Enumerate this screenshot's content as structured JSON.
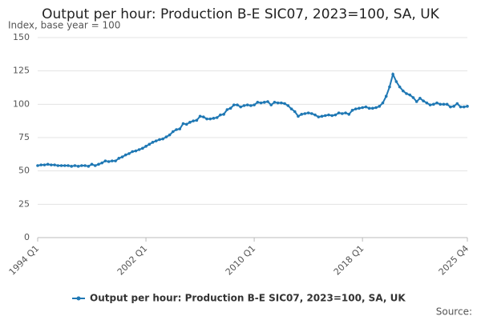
{
  "chart_data": {
    "type": "line",
    "title": "Output per hour: Production B-E SIC07, 2023=100, SA, UK",
    "y_label": "Index, base year = 100",
    "source": "Source:",
    "categories": [
      "1994 Q1",
      null,
      null,
      null,
      null,
      null,
      null,
      null,
      null,
      null,
      null,
      null,
      null,
      null,
      null,
      null,
      null,
      null,
      null,
      null,
      null,
      null,
      null,
      null,
      null,
      null,
      null,
      null,
      null,
      null,
      null,
      null,
      "2002 Q1",
      null,
      null,
      null,
      null,
      null,
      null,
      null,
      null,
      null,
      null,
      null,
      null,
      null,
      null,
      null,
      null,
      null,
      null,
      null,
      null,
      null,
      null,
      null,
      null,
      null,
      null,
      null,
      null,
      null,
      null,
      null,
      "2010 Q1",
      null,
      null,
      null,
      null,
      null,
      null,
      null,
      null,
      null,
      null,
      null,
      null,
      null,
      null,
      null,
      null,
      null,
      null,
      null,
      null,
      null,
      null,
      null,
      null,
      null,
      null,
      null,
      null,
      null,
      null,
      null,
      "2018 Q1",
      null,
      null,
      null,
      null,
      null,
      null,
      null,
      null,
      null,
      null,
      null,
      null,
      null,
      null,
      null,
      null,
      null,
      null,
      null,
      null,
      null,
      null,
      null,
      null,
      null,
      null,
      null,
      null,
      null,
      null,
      "2025 Q4"
    ],
    "series": [
      {
        "name": "Output per hour: Production B-E SIC07, 2023=100, SA, UK",
        "color": "#1f78b4",
        "values": [
          54,
          54.5,
          54.5,
          55,
          54.5,
          54.5,
          54,
          54,
          54,
          54,
          53.5,
          54,
          53.5,
          54,
          54,
          53.5,
          55,
          54,
          55,
          56,
          57.5,
          57,
          57.5,
          57.5,
          59.5,
          60.5,
          62,
          63,
          64.5,
          65,
          66,
          67,
          68.5,
          70,
          71.5,
          72.5,
          73.5,
          74,
          75.5,
          77,
          79.5,
          81,
          81.5,
          85.5,
          85,
          86.5,
          87.5,
          88,
          91,
          90.5,
          89,
          89,
          89.5,
          90,
          92,
          92.5,
          96,
          97,
          99.5,
          99.5,
          98,
          99,
          99.5,
          99,
          99.5,
          101.5,
          101,
          101.5,
          102,
          99.5,
          101.5,
          101,
          101,
          100.5,
          99,
          96.5,
          94.5,
          91,
          92.5,
          93,
          93.5,
          93,
          92,
          90.5,
          91,
          91.5,
          92,
          91.5,
          92,
          93.5,
          93,
          93.5,
          92.5,
          95.5,
          96.5,
          97,
          97.5,
          98,
          97,
          97,
          97.5,
          98.5,
          101,
          106,
          113,
          122.5,
          117,
          113,
          110,
          108,
          107,
          105,
          102,
          104.5,
          102.5,
          101,
          99.5,
          100,
          101,
          100,
          100,
          100,
          98,
          98.5,
          100.5,
          98,
          98,
          98.5
        ]
      }
    ],
    "ylim": [
      0,
      150
    ],
    "yticks": [
      0,
      25,
      50,
      75,
      100,
      125,
      150
    ],
    "grid": true
  }
}
